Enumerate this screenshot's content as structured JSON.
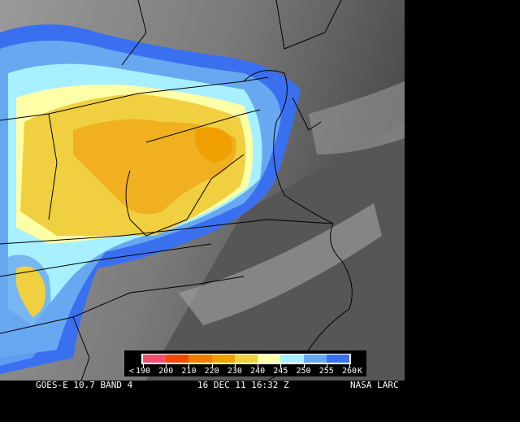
{
  "caption": {
    "satellite": "GOES-E 10.7 BAND 4",
    "datetime": "16 DEC 11 16:32 Z",
    "source": "NASA LARC"
  },
  "legend": {
    "prefix": "<",
    "unit": "K",
    "ticks": [
      "190",
      "200",
      "210",
      "220",
      "230",
      "240",
      "245",
      "250",
      "255",
      "260"
    ],
    "colors": [
      "#f05070",
      "#f04a00",
      "#f07d00",
      "#f0a000",
      "#f0d040",
      "#ffffa8",
      "#a8f0ff",
      "#68a8f0",
      "#3a70f0"
    ]
  },
  "map": {
    "type": "infrared satellite image",
    "region": "Mid-Atlantic United States",
    "colors": {
      "ocean_gray": "#5a5a5a",
      "land_gray": "#8a8a8a",
      "cloud_cold": "#f0c030",
      "cloud_mid": "#3a70f0"
    }
  }
}
